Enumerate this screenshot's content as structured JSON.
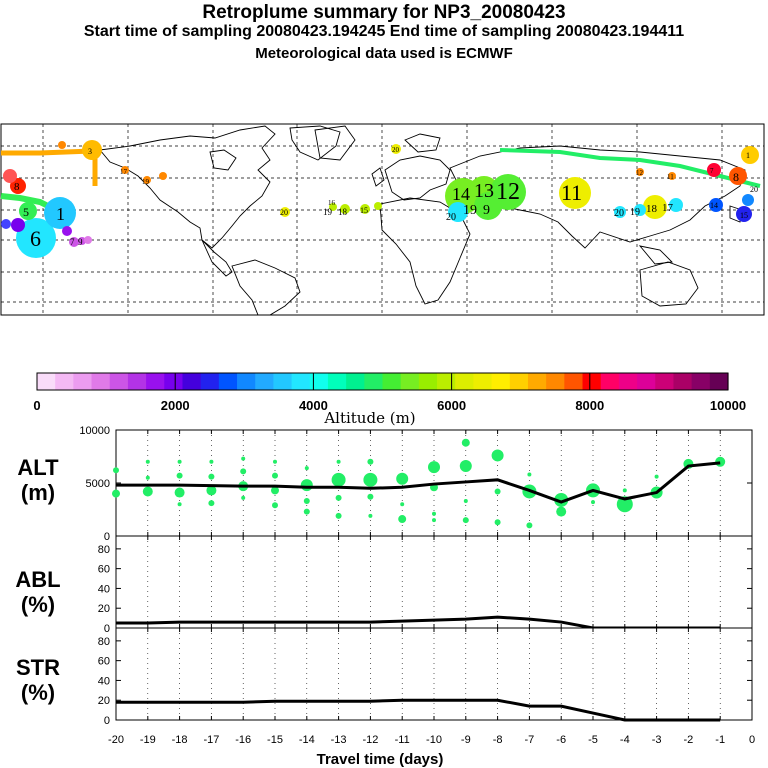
{
  "header": {
    "title": "Retroplume summary for NP3_20080423",
    "sampling": "Start time of sampling 20080423.194245     End time of sampling 20080423.194411",
    "met": "Meteorological data used is ECMWF"
  },
  "map_labels": [
    "3",
    "1",
    "5",
    "6",
    "7",
    "8",
    "9",
    "10",
    "11",
    "12",
    "13",
    "14",
    "15",
    "16",
    "17",
    "18",
    "19",
    "20"
  ],
  "colorbar": {
    "label": "Altitude (m)",
    "ticks": [
      "0",
      "2000",
      "4000",
      "6000",
      "8000",
      "10000"
    ],
    "colors": [
      "#f9dcf9",
      "#f4b9f4",
      "#ec9cf0",
      "#e07ae8",
      "#cc55e6",
      "#b333e6",
      "#9911ee",
      "#7700ee",
      "#4400dd",
      "#2222ee",
      "#0055ff",
      "#1188ff",
      "#22aaff",
      "#22c8ff",
      "#22e6ff",
      "#11ffee",
      "#00ffbb",
      "#00f090",
      "#22ee66",
      "#44ee33",
      "#77ee22",
      "#99ee00",
      "#bbee00",
      "#ddee00",
      "#eeee00",
      "#ffee00",
      "#ffd000",
      "#ffaa00",
      "#ff8800",
      "#ff5500",
      "#ff0000",
      "#ff0066",
      "#ee0088",
      "#dd0099",
      "#cc0077",
      "#aa0066",
      "#880066",
      "#660055"
    ]
  },
  "chart_data": [
    {
      "type": "line",
      "panel": "ALT",
      "ylabel": "ALT\n(m)",
      "ylabel_line1": "ALT",
      "ylabel_line2": "(m)",
      "ylim": [
        0,
        10000
      ],
      "yticks": [
        "10000",
        "5000",
        "0"
      ],
      "xlim": [
        -20,
        0
      ],
      "x": [
        -20,
        -19,
        -18,
        -17,
        -16,
        -15,
        -14,
        -13,
        -12,
        -11,
        -10,
        -9,
        -8,
        -7,
        -6,
        -5,
        -4,
        -3,
        -2,
        -1
      ],
      "values": [
        4800,
        4800,
        4800,
        4750,
        4700,
        4700,
        4600,
        4600,
        4500,
        4600,
        4900,
        5100,
        5300,
        4300,
        3200,
        4300,
        3500,
        4100,
        6600,
        6900
      ],
      "cluster_points": [
        {
          "x": -20,
          "y": 6200,
          "s": 3
        },
        {
          "x": -20,
          "y": 4000,
          "s": 4
        },
        {
          "x": -19,
          "y": 7000,
          "s": 2
        },
        {
          "x": -19,
          "y": 5500,
          "s": 2
        },
        {
          "x": -19,
          "y": 4200,
          "s": 5
        },
        {
          "x": -18,
          "y": 7000,
          "s": 2
        },
        {
          "x": -18,
          "y": 5700,
          "s": 3
        },
        {
          "x": -18,
          "y": 4100,
          "s": 5
        },
        {
          "x": -18,
          "y": 3000,
          "s": 2
        },
        {
          "x": -17,
          "y": 7000,
          "s": 2
        },
        {
          "x": -17,
          "y": 5600,
          "s": 3
        },
        {
          "x": -17,
          "y": 4300,
          "s": 5
        },
        {
          "x": -17,
          "y": 3100,
          "s": 3
        },
        {
          "x": -16,
          "y": 7300,
          "s": 2
        },
        {
          "x": -16,
          "y": 6100,
          "s": 3
        },
        {
          "x": -16,
          "y": 4700,
          "s": 5
        },
        {
          "x": -16,
          "y": 3600,
          "s": 2
        },
        {
          "x": -15,
          "y": 7000,
          "s": 2
        },
        {
          "x": -15,
          "y": 5700,
          "s": 3
        },
        {
          "x": -15,
          "y": 4300,
          "s": 4
        },
        {
          "x": -15,
          "y": 2900,
          "s": 3
        },
        {
          "x": -14,
          "y": 6400,
          "s": 2
        },
        {
          "x": -14,
          "y": 4800,
          "s": 6
        },
        {
          "x": -14,
          "y": 3300,
          "s": 3
        },
        {
          "x": -14,
          "y": 2300,
          "s": 3
        },
        {
          "x": -13,
          "y": 7000,
          "s": 2
        },
        {
          "x": -13,
          "y": 5300,
          "s": 7
        },
        {
          "x": -13,
          "y": 3600,
          "s": 3
        },
        {
          "x": -13,
          "y": 1900,
          "s": 3
        },
        {
          "x": -12,
          "y": 7000,
          "s": 3
        },
        {
          "x": -12,
          "y": 5300,
          "s": 7
        },
        {
          "x": -12,
          "y": 3700,
          "s": 3
        },
        {
          "x": -12,
          "y": 1900,
          "s": 2
        },
        {
          "x": -11,
          "y": 5400,
          "s": 6
        },
        {
          "x": -11,
          "y": 3000,
          "s": 2
        },
        {
          "x": -11,
          "y": 1600,
          "s": 4
        },
        {
          "x": -10,
          "y": 6500,
          "s": 6
        },
        {
          "x": -10,
          "y": 4600,
          "s": 4
        },
        {
          "x": -10,
          "y": 2100,
          "s": 2
        },
        {
          "x": -10,
          "y": 1500,
          "s": 2
        },
        {
          "x": -9,
          "y": 8800,
          "s": 4
        },
        {
          "x": -9,
          "y": 6600,
          "s": 6
        },
        {
          "x": -9,
          "y": 3300,
          "s": 2
        },
        {
          "x": -9,
          "y": 1500,
          "s": 3
        },
        {
          "x": -8,
          "y": 7600,
          "s": 6
        },
        {
          "x": -8,
          "y": 4200,
          "s": 3
        },
        {
          "x": -8,
          "y": 1300,
          "s": 3
        },
        {
          "x": -7,
          "y": 5800,
          "s": 2
        },
        {
          "x": -7,
          "y": 4200,
          "s": 7
        },
        {
          "x": -7,
          "y": 1000,
          "s": 3
        },
        {
          "x": -6,
          "y": 3400,
          "s": 7
        },
        {
          "x": -6,
          "y": 2300,
          "s": 5
        },
        {
          "x": -5,
          "y": 4300,
          "s": 7
        },
        {
          "x": -5,
          "y": 3200,
          "s": 2
        },
        {
          "x": -4,
          "y": 4300,
          "s": 2
        },
        {
          "x": -4,
          "y": 3000,
          "s": 8
        },
        {
          "x": -3,
          "y": 5600,
          "s": 2
        },
        {
          "x": -3,
          "y": 4100,
          "s": 6
        },
        {
          "x": -2,
          "y": 6800,
          "s": 5
        },
        {
          "x": -1,
          "y": 7000,
          "s": 5
        }
      ]
    },
    {
      "type": "line",
      "panel": "ABL",
      "ylabel": "ABL\n(%)",
      "ylabel_line1": "ABL",
      "ylabel_line2": "(%)",
      "ylim": [
        0,
        93
      ],
      "yticks": [
        "80",
        "60",
        "40",
        "20",
        "0"
      ],
      "xlim": [
        -20,
        0
      ],
      "x": [
        -20,
        -19,
        -18,
        -17,
        -16,
        -15,
        -14,
        -13,
        -12,
        -11,
        -10,
        -9,
        -8,
        -7,
        -6,
        -5,
        -4,
        -3,
        -2,
        -1
      ],
      "values": [
        5,
        5,
        6,
        6,
        6,
        6,
        6,
        6,
        6,
        7,
        8,
        9,
        11,
        9,
        6,
        0,
        0,
        0,
        0,
        0
      ]
    },
    {
      "type": "line",
      "panel": "STR",
      "ylabel": "STR\n(%)",
      "ylabel_line1": "STR",
      "ylabel_line2": "(%)",
      "ylim": [
        0,
        93
      ],
      "yticks": [
        "80",
        "60",
        "40",
        "20",
        "0"
      ],
      "xlim": [
        -20,
        0
      ],
      "x": [
        -20,
        -19,
        -18,
        -17,
        -16,
        -15,
        -14,
        -13,
        -12,
        -11,
        -10,
        -9,
        -8,
        -7,
        -6,
        -5,
        -4,
        -3,
        -2,
        -1
      ],
      "values": [
        18,
        18,
        18,
        18,
        18,
        19,
        19,
        19,
        19,
        20,
        20,
        20,
        20,
        14,
        14,
        7,
        0,
        0,
        0,
        0
      ]
    }
  ],
  "xaxis": {
    "ticks": [
      "-20",
      "-19",
      "-18",
      "-17",
      "-16",
      "-15",
      "-14",
      "-13",
      "-12",
      "-11",
      "-10",
      "-9",
      "-8",
      "-7",
      "-6",
      "-5",
      "-4",
      "-3",
      "-2",
      "-1",
      "0"
    ],
    "title": "Travel time (days)"
  },
  "colors": {
    "accent_green": "#22ee66",
    "line": "#000000"
  }
}
